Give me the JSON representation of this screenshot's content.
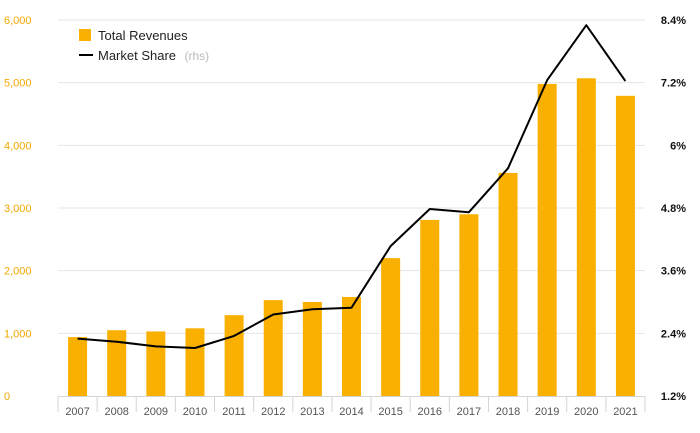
{
  "chart_data": {
    "type": "bar",
    "categories": [
      "2007",
      "2008",
      "2009",
      "2010",
      "2011",
      "2012",
      "2013",
      "2014",
      "2015",
      "2016",
      "2017",
      "2018",
      "2019",
      "2020",
      "2021"
    ],
    "series": [
      {
        "name": "Total Revenues",
        "type": "bar",
        "axis": "left",
        "color": "#F9B000",
        "values": [
          940,
          1050,
          1030,
          1080,
          1290,
          1530,
          1500,
          1580,
          2200,
          2810,
          2900,
          3560,
          4980,
          5070,
          4790
        ]
      },
      {
        "name": "Market Share",
        "name_suffix": "(rhs)",
        "type": "line",
        "axis": "right",
        "color": "#000000",
        "values": [
          2.3,
          2.24,
          2.15,
          2.12,
          2.35,
          2.76,
          2.86,
          2.89,
          4.07,
          4.78,
          4.72,
          5.56,
          7.25,
          8.3,
          7.23
        ]
      }
    ],
    "y_left": {
      "min": 0,
      "max": 6000,
      "ticks": [
        0,
        1000,
        2000,
        3000,
        4000,
        5000,
        6000
      ],
      "tick_labels": [
        "0",
        "1,000",
        "2,000",
        "3,000",
        "4,000",
        "5,000",
        "6,000"
      ],
      "color": "#F2A800"
    },
    "y_right": {
      "min": 1.2,
      "max": 8.4,
      "ticks": [
        1.2,
        2.4,
        3.6,
        4.8,
        6,
        7.2,
        8.4
      ],
      "tick_labels": [
        "1.2%",
        "2.4%",
        "3.6%",
        "4.8%",
        "6%",
        "7.2%",
        "8.4%"
      ],
      "color": "#111111"
    },
    "grid": true,
    "legend_position": "top-left",
    "title": "",
    "xlabel": "",
    "ylabel": ""
  }
}
